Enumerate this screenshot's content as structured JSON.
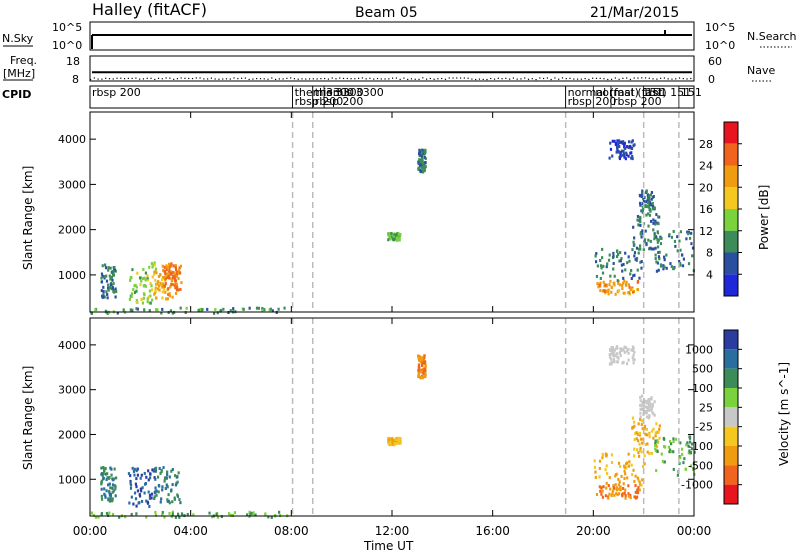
{
  "header": {
    "station": "Halley (fitACF)",
    "beam": "Beam 05",
    "date": "21/Mar/2015"
  },
  "strips": {
    "nsky_label": "N.Sky",
    "nsearch_label": "N.Search",
    "nsky_ticks": [
      "10^5",
      "10^0"
    ],
    "nsearch_ticks": [
      "10^5",
      "10^0"
    ],
    "freq_label_1": "Freq.",
    "freq_label_2": "[MHz]",
    "freq_ticks": [
      "18",
      "8"
    ],
    "nave_label": "Nave",
    "nave_ticks": [
      "60",
      "0"
    ],
    "cpid_label": "CPID"
  },
  "cpid_labels": [
    {
      "time": 0.0,
      "text": "rbsp 200",
      "row": 0
    },
    {
      "time": 8.05,
      "text": "themis 3300",
      "row": 0
    },
    {
      "time": 8.05,
      "text": "rbsp 200",
      "row": 1
    },
    {
      "time": 8.85,
      "text": "themis 3300",
      "row": 0
    },
    {
      "time": 8.85,
      "text": "rbsp 200",
      "row": 1
    },
    {
      "time": 9.3,
      "text": "3300",
      "row": 0
    },
    {
      "time": 18.9,
      "text": "normal (fast) 151",
      "row": 0
    },
    {
      "time": 18.9,
      "text": "rbsp 200",
      "row": 1
    },
    {
      "time": 20.0,
      "text": "normal (fast) 151",
      "row": 0
    },
    {
      "time": 20.7,
      "text": "rbsp 200",
      "row": 1
    },
    {
      "time": 22.0,
      "text": "151",
      "row": 0
    },
    {
      "time": 23.4,
      "text": "151",
      "row": 0
    }
  ],
  "switch_times": [
    8.05,
    8.85,
    18.9,
    22.0,
    23.4
  ],
  "power_panel": {
    "ylabel": "Slant Range [km]",
    "yticks": [
      "1000",
      "2000",
      "3000",
      "4000"
    ],
    "cbar_label": "Power [dB]",
    "cbar_ticks": [
      "28",
      "24",
      "20",
      "16",
      "12",
      "8",
      "4"
    ],
    "cbar_colors": [
      "#e8141e",
      "#f0641e",
      "#f09c10",
      "#f4c81e",
      "#7ad23c",
      "#3c8c5a",
      "#2a4ea0",
      "#1e28d8"
    ]
  },
  "velocity_panel": {
    "ylabel": "Slant Range [km]",
    "yticks": [
      "1000",
      "2000",
      "3000",
      "4000"
    ],
    "cbar_label": "Velocity [m s^-1]",
    "cbar_ticks": [
      "1000",
      "500",
      "100",
      "25",
      "-25",
      "-100",
      "-500",
      "-1000"
    ],
    "cbar_colors": [
      "#2a3ca0",
      "#2a6ea0",
      "#3c8c5a",
      "#7ad23c",
      "#c8c8c8",
      "#f4c81e",
      "#f09c10",
      "#f0641e",
      "#e8141e"
    ]
  },
  "xaxis": {
    "label": "Time UT",
    "ticks": [
      "00:00",
      "04:00",
      "08:00",
      "12:00",
      "16:00",
      "20:00",
      "00:00"
    ]
  },
  "chart_data": {
    "type": "heatmap",
    "title": "Halley (fitACF) Beam 05 21/Mar/2015",
    "xlabel": "Time UT",
    "ylabel": "Slant Range [km]",
    "xlim": [
      0,
      24
    ],
    "ylim": [
      180,
      4600
    ],
    "nsky_scale": "log",
    "nsky_ylim": [
      1,
      100000
    ],
    "freq_ylim": [
      8,
      18
    ],
    "freq_mhz": 11.5,
    "nave_ylim": [
      0,
      60
    ],
    "nave_typical": 7,
    "power_range_db": [
      0,
      30
    ],
    "velocity_levels": [
      -1000,
      -500,
      -100,
      -25,
      25,
      100,
      500,
      1000
    ],
    "power_patches": [
      {
        "t": [
          0.0,
          7.8
        ],
        "r": [
          180,
          300
        ],
        "p": 10
      },
      {
        "t": [
          0.4,
          1.0
        ],
        "r": [
          500,
          1300
        ],
        "p": 8
      },
      {
        "t": [
          1.5,
          2.6
        ],
        "r": [
          400,
          1300
        ],
        "p": 14
      },
      {
        "t": [
          2.5,
          3.4
        ],
        "r": [
          500,
          1300
        ],
        "p": 22
      },
      {
        "t": [
          2.9,
          3.6
        ],
        "r": [
          700,
          1300
        ],
        "p": 24
      },
      {
        "t": [
          13.0,
          13.3
        ],
        "r": [
          3300,
          3800
        ],
        "p": 8
      },
      {
        "t": [
          11.8,
          12.3
        ],
        "r": [
          1800,
          1950
        ],
        "p": 12
      },
      {
        "t": [
          20.1,
          21.8
        ],
        "r": [
          600,
          900
        ],
        "p": 22
      },
      {
        "t": [
          20.0,
          22.0
        ],
        "r": [
          900,
          1600
        ],
        "p": 8
      },
      {
        "t": [
          21.5,
          22.6
        ],
        "r": [
          1600,
          2400
        ],
        "p": 8
      },
      {
        "t": [
          22.4,
          24.0
        ],
        "r": [
          1100,
          2000
        ],
        "p": 8
      },
      {
        "t": [
          21.8,
          22.4
        ],
        "r": [
          2400,
          2900
        ],
        "p": 8
      },
      {
        "t": [
          20.6,
          21.6
        ],
        "r": [
          3600,
          4000
        ],
        "p": 4
      }
    ],
    "velocity_patches": [
      {
        "t": [
          0.0,
          7.8
        ],
        "r": [
          180,
          300
        ],
        "v": 100
      },
      {
        "t": [
          0.4,
          1.0
        ],
        "r": [
          500,
          1300
        ],
        "v": 500
      },
      {
        "t": [
          1.5,
          2.6
        ],
        "r": [
          400,
          1300
        ],
        "v": 1000
      },
      {
        "t": [
          2.5,
          3.6
        ],
        "r": [
          500,
          1300
        ],
        "v": 500
      },
      {
        "t": [
          13.0,
          13.3
        ],
        "r": [
          3300,
          3800
        ],
        "v": -500
      },
      {
        "t": [
          11.8,
          12.3
        ],
        "r": [
          1800,
          1950
        ],
        "v": -100
      },
      {
        "t": [
          20.1,
          21.8
        ],
        "r": [
          600,
          900
        ],
        "v": -500
      },
      {
        "t": [
          20.0,
          22.0
        ],
        "r": [
          900,
          1600
        ],
        "v": -100
      },
      {
        "t": [
          21.5,
          22.6
        ],
        "r": [
          1600,
          2400
        ],
        "v": -100
      },
      {
        "t": [
          22.4,
          24.0
        ],
        "r": [
          1100,
          2000
        ],
        "v": 100
      },
      {
        "t": [
          21.8,
          22.4
        ],
        "r": [
          2400,
          2900
        ],
        "v": 0
      },
      {
        "t": [
          20.6,
          21.6
        ],
        "r": [
          3600,
          4000
        ],
        "v": 0
      }
    ]
  }
}
